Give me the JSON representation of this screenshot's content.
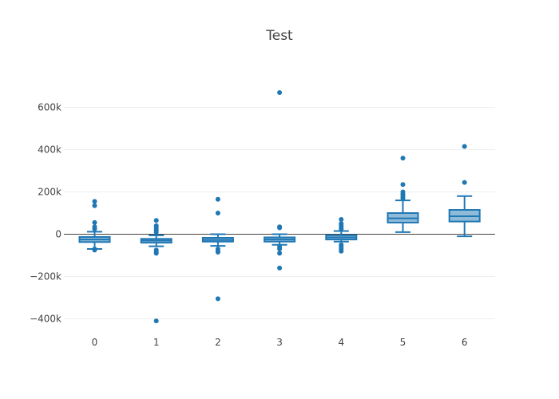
{
  "chart_data": {
    "type": "box",
    "title": "Test",
    "xlabel": "",
    "ylabel": "",
    "categories": [
      "0",
      "1",
      "2",
      "3",
      "4",
      "5",
      "6"
    ],
    "ylim": [
      -440000,
      700000
    ],
    "yticks": [
      -400000,
      -200000,
      0,
      200000,
      400000,
      600000
    ],
    "ytick_labels": [
      "−400k",
      "−200k",
      "0",
      "200k",
      "400k",
      "600k"
    ],
    "grid": true,
    "zero_line": true,
    "color": "#1f77b4",
    "boxes": [
      {
        "category": "0",
        "lower_whisker": -70000,
        "q1": -37000,
        "median": -25000,
        "q3": -13000,
        "upper_whisker": 12000,
        "outliers": [
          155000,
          135000,
          55000,
          35000,
          25000,
          -70000,
          -75000
        ]
      },
      {
        "category": "1",
        "lower_whisker": -57000,
        "q1": -40000,
        "median": -30000,
        "q3": -22000,
        "upper_whisker": -5000,
        "outliers": [
          65000,
          40000,
          30000,
          20000,
          10000,
          -75000,
          -85000,
          -90000,
          -410000
        ]
      },
      {
        "category": "2",
        "lower_whisker": -55000,
        "q1": -35000,
        "median": -27000,
        "q3": -17000,
        "upper_whisker": 0,
        "outliers": [
          165000,
          100000,
          -70000,
          -80000,
          -85000,
          -305000
        ]
      },
      {
        "category": "3",
        "lower_whisker": -50000,
        "q1": -35000,
        "median": -25000,
        "q3": -15000,
        "upper_whisker": 0,
        "outliers": [
          670000,
          35000,
          30000,
          -60000,
          -70000,
          -90000,
          -160000
        ]
      },
      {
        "category": "4",
        "lower_whisker": -35000,
        "q1": -25000,
        "median": -15000,
        "q3": -5000,
        "upper_whisker": 15000,
        "outliers": [
          70000,
          50000,
          40000,
          30000,
          25000,
          -50000,
          -60000,
          -70000,
          -80000
        ]
      },
      {
        "category": "5",
        "lower_whisker": 10000,
        "q1": 55000,
        "median": 75000,
        "q3": 100000,
        "upper_whisker": 160000,
        "outliers": [
          360000,
          235000,
          200000,
          190000,
          185000,
          175000,
          170000
        ]
      },
      {
        "category": "6",
        "lower_whisker": -10000,
        "q1": 60000,
        "median": 85000,
        "q3": 115000,
        "upper_whisker": 180000,
        "outliers": [
          415000,
          245000
        ]
      }
    ]
  }
}
